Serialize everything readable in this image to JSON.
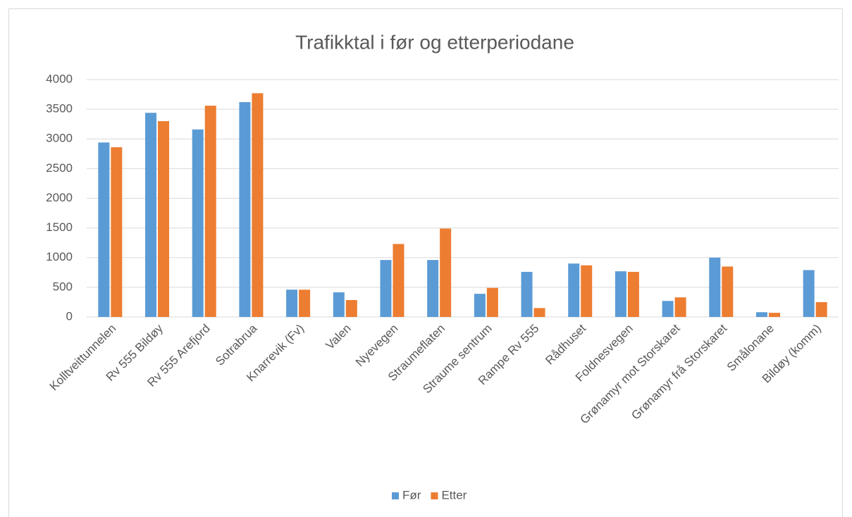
{
  "chart_data": {
    "type": "bar",
    "title": "Trafikktal i før og etterperiodane",
    "categories": [
      "Kolltveittunnelen",
      "Rv 555 Bildøy",
      "Rv 555 Arefjord",
      "Sotrabrua",
      "Knarrevik (Fv)",
      "Valen",
      "Nyevegen",
      "Straumeflaten",
      "Straume sentrum",
      "Rampe Rv 555",
      "Rådhuset",
      "Foldnesvegen",
      "Grønamyr mot Storskaret",
      "Grønamyr frå Storskaret",
      "Smålonane",
      "Bildøy (komm)"
    ],
    "series": [
      {
        "name": "Før",
        "color": "#5b9bd5",
        "values": [
          2940,
          3440,
          3160,
          3620,
          460,
          415,
          960,
          960,
          390,
          760,
          900,
          770,
          270,
          1000,
          80,
          790
        ]
      },
      {
        "name": "Etter",
        "color": "#ed7d31",
        "values": [
          2860,
          3300,
          3560,
          3770,
          460,
          285,
          1230,
          1490,
          490,
          150,
          870,
          760,
          330,
          850,
          70,
          250
        ]
      }
    ],
    "ylim": [
      0,
      4000
    ],
    "yticks": [
      0,
      500,
      1000,
      1500,
      2000,
      2500,
      3000,
      3500,
      4000
    ],
    "grid": true,
    "legend": "bottom"
  }
}
